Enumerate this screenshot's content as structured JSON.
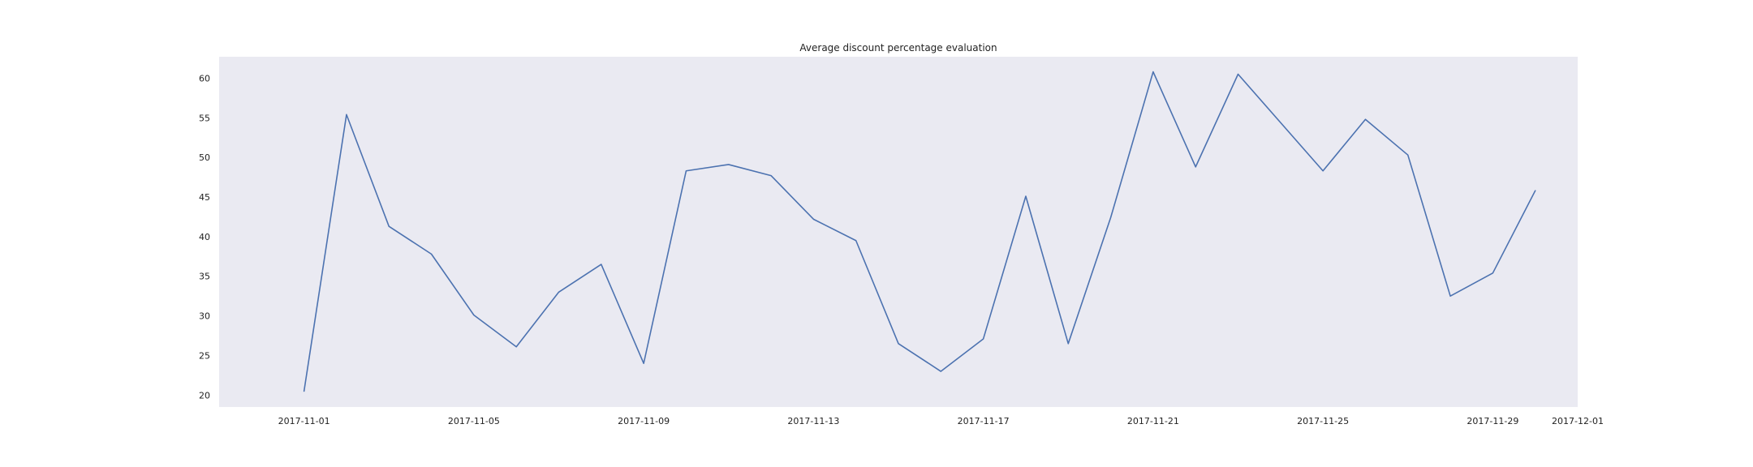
{
  "chart_data": {
    "type": "line",
    "title": "Average discount percentage evaluation",
    "xlabel": "",
    "ylabel": "",
    "xlim": [
      "2017-10-30",
      "2017-12-01"
    ],
    "ylim": [
      18.5,
      62.7
    ],
    "grid": false,
    "x_ticks": [
      "2017-11-01",
      "2017-11-05",
      "2017-11-09",
      "2017-11-13",
      "2017-11-17",
      "2017-11-21",
      "2017-11-25",
      "2017-11-29",
      "2017-12-01"
    ],
    "y_ticks": [
      20,
      25,
      30,
      35,
      40,
      45,
      50,
      55,
      60
    ],
    "series": [
      {
        "x": [
          "2017-11-01",
          "2017-11-02",
          "2017-11-03",
          "2017-11-04",
          "2017-11-05",
          "2017-11-06",
          "2017-11-07",
          "2017-11-08",
          "2017-11-09",
          "2017-11-10",
          "2017-11-11",
          "2017-11-12",
          "2017-11-13",
          "2017-11-14",
          "2017-11-15",
          "2017-11-16",
          "2017-11-17",
          "2017-11-18",
          "2017-11-19",
          "2017-11-20",
          "2017-11-21",
          "2017-11-22",
          "2017-11-23",
          "2017-11-24",
          "2017-11-25",
          "2017-11-26",
          "2017-11-27",
          "2017-11-28",
          "2017-11-29",
          "2017-11-30"
        ],
        "values": [
          20.5,
          55.4,
          41.3,
          37.8,
          30.1,
          26.1,
          33.0,
          36.5,
          24.0,
          48.3,
          49.1,
          47.7,
          42.2,
          39.5,
          26.5,
          23.0,
          27.1,
          45.1,
          26.5,
          42.4,
          60.8,
          48.8,
          60.5,
          54.4,
          48.3,
          54.8,
          50.3,
          32.5,
          35.4,
          45.8
        ],
        "color": "#4c72b0"
      }
    ],
    "colors": {
      "plot_background": "#eaeaf2",
      "line": "#4c72b0",
      "text": "#222222"
    }
  }
}
